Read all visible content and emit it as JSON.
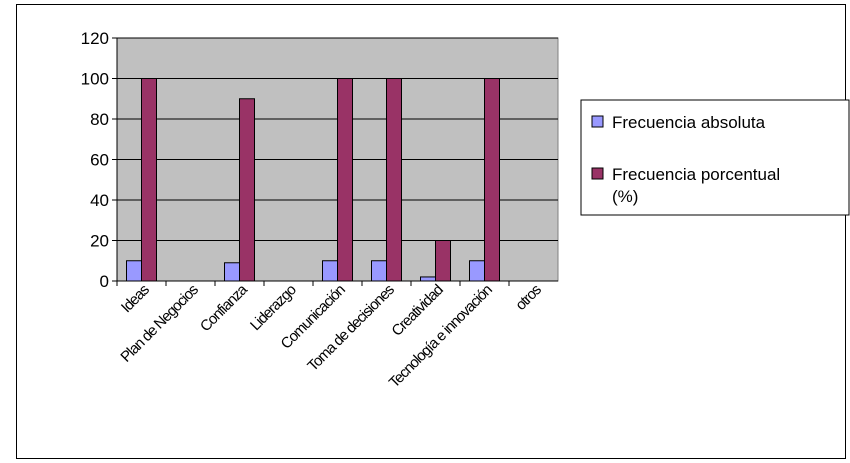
{
  "chart_data": {
    "type": "bar",
    "categories": [
      "Ideas",
      "Plan de Negocios",
      "Confianza",
      "Liderazgo",
      "Comunicación",
      "Toma de decisiones",
      "Creatividad",
      "Tecnología e innovación",
      "otros"
    ],
    "series": [
      {
        "name": "Frecuencia absoluta",
        "color": "#9999FF",
        "values": [
          10,
          0,
          9,
          0,
          10,
          10,
          2,
          10,
          0
        ]
      },
      {
        "name": "Frecuencia porcentual (%)",
        "color": "#993366",
        "values": [
          100,
          0,
          90,
          0,
          100,
          100,
          20,
          100,
          0
        ]
      }
    ],
    "y_ticks": [
      "0",
      "20",
      "40",
      "60",
      "80",
      "100",
      "120"
    ],
    "ylim": [
      0,
      120
    ],
    "grid": true,
    "plot_background": "#C0C0C0",
    "legend_position": "right"
  }
}
